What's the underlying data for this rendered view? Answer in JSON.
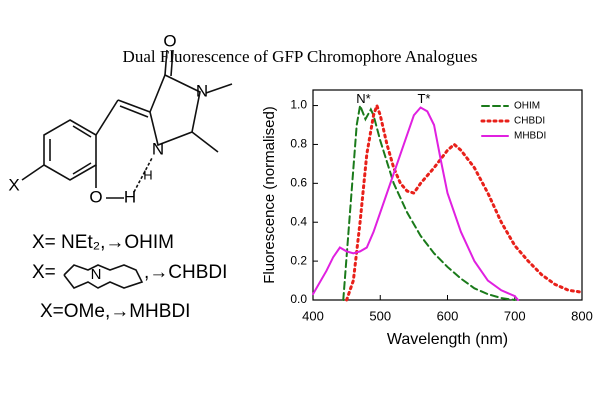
{
  "title": "Dual Fluorescence of GFP Chromophore Analogues",
  "structure": {
    "atoms": [
      "O",
      "N",
      "N",
      "X",
      "O",
      "H",
      "H"
    ],
    "legend_lines": [
      "X= NEt₂,→OHIM",
      "X=",
      ",→CHBDI",
      "N",
      "X=OMe,→MHBDI"
    ]
  },
  "chart_data": {
    "type": "line",
    "xlabel": "Wavelength (nm)",
    "ylabel": "Fluorescence (normalised)",
    "xlim": [
      400,
      800
    ],
    "xticks": [
      400,
      500,
      600,
      700,
      800
    ],
    "ylim": [
      0,
      1.08
    ],
    "yticks": [
      {
        "value": 0,
        "label": "0.0"
      },
      0.2,
      0.4,
      0.6,
      0.8,
      {
        "value": 1,
        "label": "1.0"
      }
    ],
    "legend": "top-right",
    "annotations": [
      {
        "text": "N*",
        "x": 475,
        "y": 1.03
      },
      {
        "text": "T*",
        "x": 565,
        "y": 1.03
      }
    ],
    "series": [
      {
        "name": "OHIM",
        "color": "#1a7a1a",
        "style": "dashed",
        "x": [
          445,
          455,
          465,
          470,
          478,
          486,
          490,
          500,
          520,
          540,
          560,
          580,
          600,
          620,
          640,
          660,
          680,
          700
        ],
        "values": [
          0,
          0.45,
          0.9,
          1.0,
          0.93,
          0.98,
          0.95,
          0.82,
          0.6,
          0.45,
          0.33,
          0.24,
          0.17,
          0.11,
          0.06,
          0.03,
          0.01,
          0
        ]
      },
      {
        "name": "CHBDI",
        "color": "#e8201a",
        "style": "dotted",
        "x": [
          450,
          460,
          470,
          480,
          490,
          495,
          500,
          510,
          520,
          530,
          540,
          550,
          560,
          580,
          600,
          610,
          620,
          640,
          660,
          680,
          700,
          720,
          740,
          760,
          780,
          800
        ],
        "values": [
          0,
          0.1,
          0.4,
          0.75,
          0.95,
          1.0,
          0.95,
          0.8,
          0.68,
          0.6,
          0.56,
          0.55,
          0.6,
          0.68,
          0.77,
          0.8,
          0.77,
          0.68,
          0.55,
          0.4,
          0.28,
          0.2,
          0.13,
          0.08,
          0.05,
          0.04
        ]
      },
      {
        "name": "MHBDI",
        "color": "#e020e0",
        "style": "solid",
        "x": [
          400,
          420,
          430,
          440,
          450,
          460,
          470,
          480,
          490,
          500,
          520,
          540,
          550,
          560,
          570,
          580,
          590,
          600,
          620,
          640,
          660,
          680,
          700,
          705
        ],
        "values": [
          0.03,
          0.15,
          0.22,
          0.27,
          0.25,
          0.24,
          0.25,
          0.27,
          0.35,
          0.45,
          0.65,
          0.85,
          0.95,
          0.99,
          0.97,
          0.9,
          0.72,
          0.55,
          0.35,
          0.2,
          0.1,
          0.05,
          0.02,
          0
        ]
      }
    ]
  }
}
